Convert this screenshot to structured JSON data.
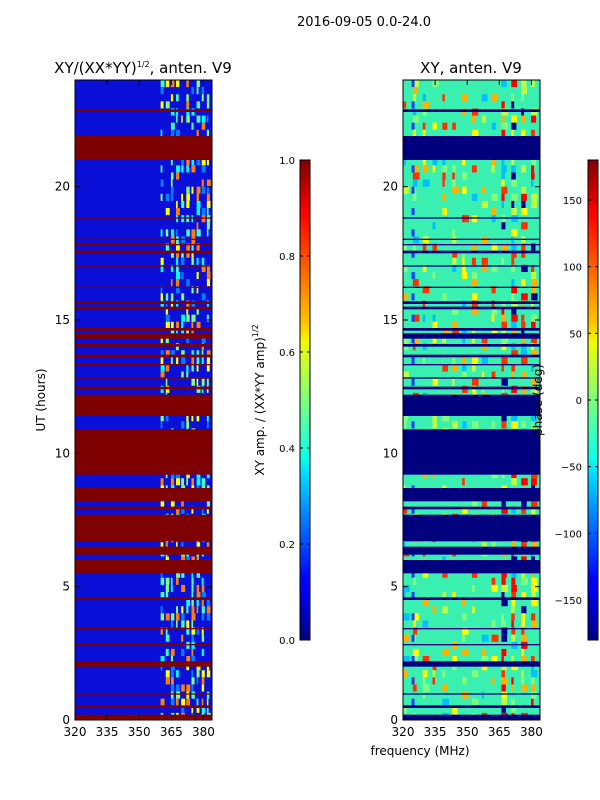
{
  "figure": {
    "suptitle": "2016-09-05 0.0-24.0",
    "xlabel": "frequency (MHz)"
  },
  "chart_data": [
    {
      "type": "heatmap",
      "title": "XY/(XX*YY)",
      "title_sup": "1/2",
      "title_suffix": ", anten. V9",
      "ylabel": "UT (hours)",
      "x_ticks": [
        320,
        335,
        350,
        365,
        380
      ],
      "y_ticks": [
        0,
        5,
        10,
        15,
        20
      ],
      "xlim": [
        320,
        384
      ],
      "ylim": [
        0,
        24
      ],
      "colorbar": {
        "label": "XY amp. / (XX*YY amp)",
        "label_sup": "1/2",
        "range": [
          0.0,
          1.0
        ],
        "ticks": [
          "0.0",
          "0.2",
          "0.4",
          "0.6",
          "0.8",
          "1.0"
        ],
        "tick_values": [
          0.0,
          0.2,
          0.4,
          0.6,
          0.8,
          1.0
        ]
      },
      "flagged_bands_hours": [
        [
          0.0,
          0.2
        ],
        [
          0.45,
          0.55
        ],
        [
          0.95,
          1.0
        ],
        [
          2.0,
          2.2
        ],
        [
          2.8,
          2.85
        ],
        [
          3.4,
          3.45
        ],
        [
          4.5,
          4.6
        ],
        [
          5.5,
          6.0
        ],
        [
          6.2,
          6.5
        ],
        [
          6.7,
          7.7
        ],
        [
          7.9,
          8.0
        ],
        [
          8.2,
          8.7
        ],
        [
          9.2,
          10.9
        ],
        [
          11.4,
          12.2
        ],
        [
          12.4,
          12.5
        ],
        [
          12.8,
          12.85
        ],
        [
          13.3,
          13.35
        ],
        [
          13.6,
          13.7
        ],
        [
          14.0,
          14.1
        ],
        [
          14.3,
          14.5
        ],
        [
          14.6,
          14.7
        ],
        [
          15.4,
          15.5
        ],
        [
          15.6,
          15.7
        ],
        [
          16.2,
          16.25
        ],
        [
          17.0,
          17.05
        ],
        [
          17.5,
          17.6
        ],
        [
          17.8,
          17.85
        ],
        [
          18.0,
          18.05
        ],
        [
          18.8,
          18.85
        ],
        [
          21.0,
          21.9
        ],
        [
          22.8,
          22.9
        ]
      ]
    },
    {
      "type": "heatmap",
      "title": "XY, anten. V9",
      "x_ticks": [
        320,
        335,
        350,
        365,
        380
      ],
      "y_ticks": [
        0,
        5,
        10,
        15,
        20
      ],
      "xlim": [
        320,
        384
      ],
      "ylim": [
        0,
        24
      ],
      "colorbar": {
        "label": "phase (deg)",
        "range": [
          -180,
          180
        ],
        "ticks": [
          "−150",
          "−100",
          "−50",
          "0",
          "50",
          "100",
          "150"
        ],
        "tick_values": [
          -150,
          -100,
          -50,
          0,
          50,
          100,
          150
        ]
      },
      "flagged_bands_hours": [
        [
          0.0,
          0.2
        ],
        [
          0.45,
          0.55
        ],
        [
          0.95,
          1.0
        ],
        [
          2.0,
          2.2
        ],
        [
          2.8,
          2.85
        ],
        [
          3.4,
          3.45
        ],
        [
          4.5,
          4.6
        ],
        [
          5.5,
          6.0
        ],
        [
          6.2,
          6.5
        ],
        [
          6.7,
          7.7
        ],
        [
          7.9,
          8.0
        ],
        [
          8.2,
          8.7
        ],
        [
          9.2,
          10.9
        ],
        [
          11.4,
          12.2
        ],
        [
          12.4,
          12.5
        ],
        [
          12.8,
          12.85
        ],
        [
          13.3,
          13.35
        ],
        [
          13.6,
          13.7
        ],
        [
          14.0,
          14.1
        ],
        [
          14.3,
          14.5
        ],
        [
          14.6,
          14.7
        ],
        [
          15.4,
          15.5
        ],
        [
          15.6,
          15.7
        ],
        [
          16.2,
          16.25
        ],
        [
          17.0,
          17.05
        ],
        [
          17.5,
          17.6
        ],
        [
          17.8,
          17.85
        ],
        [
          18.0,
          18.05
        ],
        [
          18.8,
          18.85
        ],
        [
          21.0,
          21.9
        ],
        [
          22.8,
          22.9
        ]
      ]
    }
  ]
}
